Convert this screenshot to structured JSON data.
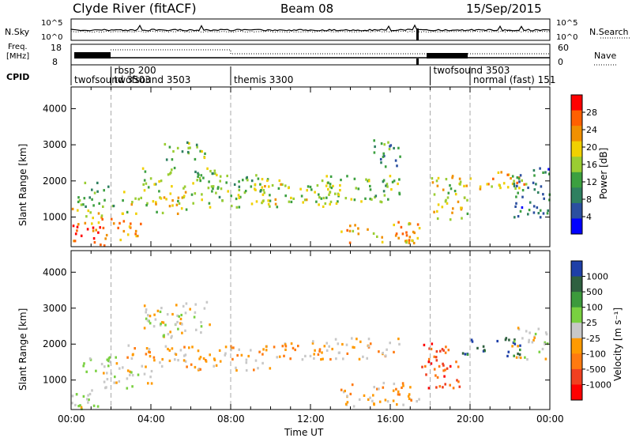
{
  "header": {
    "title": "Clyde River (fitACF)",
    "beam": "Beam 08",
    "date": "15/Sep/2015"
  },
  "noise_panel": {
    "label_left": "N.Sky",
    "label_right": "N.Search",
    "tick_high": "10^5",
    "tick_low": "10^0"
  },
  "freq_panel": {
    "label_line1": "Freq.",
    "label_line2": "[MHz]",
    "tick_high": "18",
    "tick_low": "8",
    "right_label": "Nave",
    "right_tick_high": "60",
    "right_tick_low": "0"
  },
  "cpid_panel": {
    "label": "CPID",
    "modes": [
      {
        "name": "twofsound 3503",
        "start_hour": 0
      },
      {
        "name": "rbsp 200",
        "start_hour": 2
      },
      {
        "name": "twofsound 3503",
        "start_hour": 2
      },
      {
        "name": "themis 3300",
        "start_hour": 8
      },
      {
        "name": "twofsound 3503",
        "start_hour": 18
      },
      {
        "name": "normal (fast) 151",
        "start_hour": 20
      }
    ]
  },
  "power_panel": {
    "ylabel": "Slant Range [km]",
    "yticks": [
      "4000",
      "3000",
      "2000",
      "1000"
    ],
    "colorbar_label": "Power [dB]",
    "colorbar_ticks": [
      "28",
      "24",
      "20",
      "16",
      "12",
      "8",
      "4"
    ],
    "colors": [
      "#0000ff",
      "#2b4fa0",
      "#2f8060",
      "#3ca040",
      "#9acd32",
      "#f0d000",
      "#f09000",
      "#ff6000",
      "#ff0000"
    ]
  },
  "velocity_panel": {
    "ylabel": "Slant Range [km]",
    "yticks": [
      "4000",
      "3000",
      "2000",
      "1000"
    ],
    "colorbar_label": "Velocity [m s⁻¹]",
    "colorbar_ticks": [
      "1000",
      "500",
      "100",
      "25",
      "-25",
      "-100",
      "-500",
      "-1000"
    ],
    "colors": [
      "#1e3fa8",
      "#2f6040",
      "#3c9a3c",
      "#79d040",
      "#c8c8c8",
      "#ff9a00",
      "#ff7a10",
      "#f04020",
      "#ff0000"
    ]
  },
  "xaxis": {
    "ticks": [
      "00:00",
      "04:00",
      "08:00",
      "12:00",
      "16:00",
      "20:00",
      "00:00"
    ],
    "label": "Time UT"
  },
  "chart_data": [
    {
      "type": "heatmap",
      "title": "Power",
      "xlabel": "Time UT",
      "ylabel": "Slant Range [km]",
      "xlim": [
        0,
        24
      ],
      "ylim": [
        180,
        4600
      ],
      "colorbar_label": "Power [dB]",
      "colorbar_range": [
        0,
        30
      ],
      "blobs": [
        {
          "t0": 0.0,
          "t1": 1.7,
          "r0": 200,
          "r1": 800,
          "v": 27
        },
        {
          "t0": 0.0,
          "t1": 1.5,
          "r0": 800,
          "r1": 1300,
          "v": 20
        },
        {
          "t0": 1.5,
          "t1": 3.5,
          "r0": 400,
          "r1": 1000,
          "v": 22
        },
        {
          "t0": 0.3,
          "t1": 2.2,
          "r0": 1300,
          "r1": 2000,
          "v": 12
        },
        {
          "t0": 2.5,
          "t1": 5.8,
          "r0": 1100,
          "r1": 1800,
          "v": 18
        },
        {
          "t0": 3.5,
          "t1": 7.5,
          "r0": 1800,
          "r1": 2400,
          "v": 14
        },
        {
          "t0": 4.5,
          "t1": 7.0,
          "r0": 2600,
          "r1": 3100,
          "v": 12
        },
        {
          "t0": 6.0,
          "t1": 10.0,
          "r0": 1300,
          "r1": 2200,
          "v": 14
        },
        {
          "t0": 9.5,
          "t1": 13.0,
          "r0": 1300,
          "r1": 2100,
          "v": 16
        },
        {
          "t0": 12.0,
          "t1": 16.5,
          "r0": 1400,
          "r1": 2200,
          "v": 14
        },
        {
          "t0": 13.5,
          "t1": 17.5,
          "r0": 300,
          "r1": 900,
          "v": 20
        },
        {
          "t0": 15.0,
          "t1": 16.5,
          "r0": 2400,
          "r1": 3200,
          "v": 10
        },
        {
          "t0": 18.0,
          "t1": 20.0,
          "r0": 900,
          "r1": 2200,
          "v": 18
        },
        {
          "t0": 20.0,
          "t1": 23.0,
          "r0": 1800,
          "r1": 2300,
          "v": 20
        },
        {
          "t0": 22.0,
          "t1": 24.0,
          "r0": 1000,
          "r1": 2400,
          "v": 8
        }
      ]
    },
    {
      "type": "heatmap",
      "title": "Velocity",
      "xlabel": "Time UT",
      "ylabel": "Slant Range [km]",
      "xlim": [
        0,
        24
      ],
      "ylim": [
        180,
        4600
      ],
      "colorbar_label": "Velocity [m s⁻¹]",
      "colorbar_range": [
        -1000,
        1000
      ],
      "blobs": [
        {
          "t0": 0.0,
          "t1": 1.5,
          "r0": 200,
          "r1": 900,
          "v": 0
        },
        {
          "t0": 1.5,
          "t1": 4.0,
          "r0": 800,
          "r1": 1500,
          "v": 0
        },
        {
          "t0": 0.5,
          "t1": 2.5,
          "r0": 1200,
          "r1": 1700,
          "v": 60
        },
        {
          "t0": 2.5,
          "t1": 6.0,
          "r0": 1400,
          "r1": 2000,
          "v": -200
        },
        {
          "t0": 3.5,
          "t1": 7.0,
          "r0": 2200,
          "r1": 3200,
          "v": 0
        },
        {
          "t0": 6.0,
          "t1": 10.0,
          "r0": 1300,
          "r1": 2000,
          "v": -200
        },
        {
          "t0": 10.0,
          "t1": 12.5,
          "r0": 1600,
          "r1": 2100,
          "v": -300
        },
        {
          "t0": 12.0,
          "t1": 16.5,
          "r0": 1600,
          "r1": 2200,
          "v": -150
        },
        {
          "t0": 13.5,
          "t1": 17.5,
          "r0": 300,
          "r1": 1000,
          "v": -200
        },
        {
          "t0": 17.5,
          "t1": 19.5,
          "r0": 800,
          "r1": 2100,
          "v": -600
        },
        {
          "t0": 19.5,
          "t1": 22.5,
          "r0": 1700,
          "r1": 2200,
          "v": 700
        },
        {
          "t0": 22.0,
          "t1": 24.0,
          "r0": 1600,
          "r1": 2500,
          "v": 0
        }
      ]
    }
  ]
}
